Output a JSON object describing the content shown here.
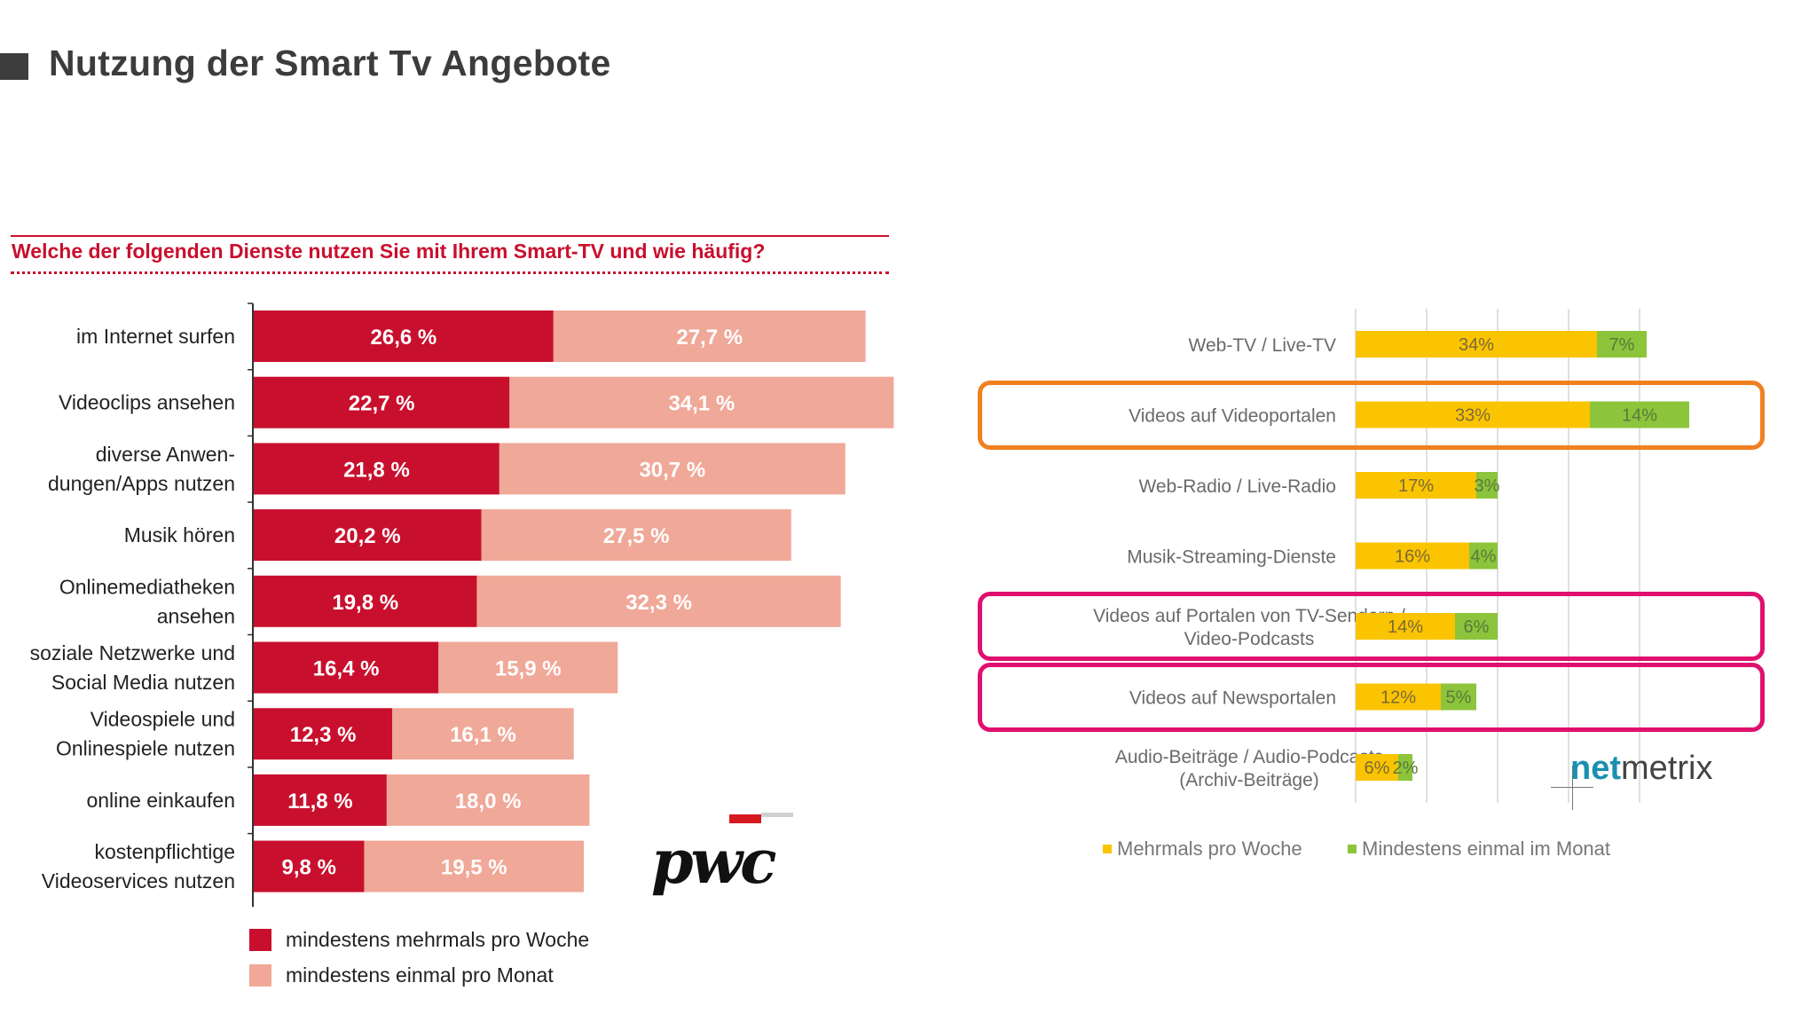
{
  "page": {
    "title": "Nutzung der Smart Tv Angebote"
  },
  "chart_data": [
    {
      "type": "bar",
      "orientation": "horizontal",
      "stacked": true,
      "title": "Welche der folgenden Dienste nutzen Sie mit Ihrem Smart-TV und wie häufig?",
      "categories": [
        [
          "im Internet surfen"
        ],
        [
          "Videoclips ansehen"
        ],
        [
          "diverse Anwen-",
          "dungen/Apps nutzen"
        ],
        [
          "Musik hören"
        ],
        [
          "Onlinemediatheken",
          "ansehen"
        ],
        [
          "soziale Netzwerke und",
          "Social Media nutzen"
        ],
        [
          "Videospiele und",
          "Onlinespiele nutzen"
        ],
        [
          "online einkaufen"
        ],
        [
          "kostenpflichtige",
          "Videoservices nutzen"
        ]
      ],
      "series": [
        {
          "name": "mindestens mehrmals pro Woche",
          "color": "#c8102e",
          "label_color": "#ffffff",
          "values": [
            26.6,
            22.7,
            21.8,
            20.2,
            19.8,
            16.4,
            12.3,
            11.8,
            9.8
          ],
          "labels": [
            "26,6 %",
            "22,7 %",
            "21,8 %",
            "20,2 %",
            "19,8 %",
            "16,4 %",
            "12,3 %",
            "11,8 %",
            "9,8 %"
          ]
        },
        {
          "name": "mindestens einmal pro Monat",
          "color": "#f0a898",
          "label_color": "#ffffff",
          "values": [
            27.7,
            34.1,
            30.7,
            27.5,
            32.3,
            15.9,
            16.1,
            18.0,
            19.5
          ],
          "labels": [
            "27,7 %",
            "34,1 %",
            "30,7 %",
            "27,5 %",
            "32,3 %",
            "15,9 %",
            "16,1 %",
            "18,0 %",
            "19,5 %"
          ]
        }
      ],
      "logo": "pwc"
    },
    {
      "type": "bar",
      "orientation": "horizontal",
      "stacked": true,
      "grid": true,
      "categories": [
        [
          "Web-TV / Live-TV"
        ],
        [
          "Videos auf Videoportalen"
        ],
        [
          "Web-Radio / Live-Radio"
        ],
        [
          "Musik-Streaming-Dienste"
        ],
        [
          "Videos auf Portalen von TV-Sendern /",
          "Video-Podcasts"
        ],
        [
          "Videos auf Newsportalen"
        ],
        [
          "Audio-Beiträge / Audio-Podcasts",
          "(Archiv-Beiträge)"
        ]
      ],
      "series": [
        {
          "name": "Mehrmals pro Woche",
          "color": "#fbc400",
          "label_color": "#7a6a3a",
          "values": [
            34,
            33,
            17,
            16,
            14,
            12,
            6
          ],
          "labels": [
            "34%",
            "33%",
            "17%",
            "16%",
            "14%",
            "12%",
            "6%"
          ]
        },
        {
          "name": "Mindestens einmal im Monat",
          "color": "#8cc43c",
          "label_color": "#5a7a3a",
          "values": [
            7,
            14,
            3,
            4,
            6,
            5,
            2
          ],
          "labels": [
            "7%",
            "14%",
            "3%",
            "4%",
            "6%",
            "5%",
            "2%"
          ]
        }
      ],
      "highlights": [
        {
          "row": 1,
          "color": "#f08020"
        },
        {
          "row": 4,
          "color": "#e0106e"
        },
        {
          "row": 5,
          "color": "#e0106e"
        }
      ],
      "logo": "netmetrix"
    }
  ],
  "logos": {
    "pwc": "pwc",
    "netmetrix_a": "net",
    "netmetrix_b": "metrix"
  }
}
